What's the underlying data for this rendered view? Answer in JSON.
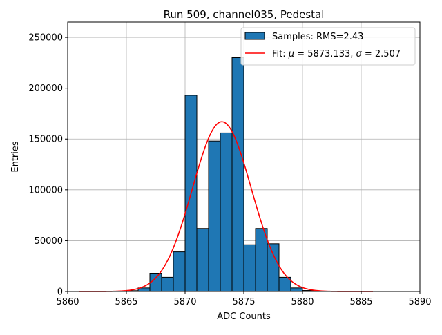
{
  "chart_data": {
    "type": "bar",
    "title": "Run 509, channel035, Pedestal",
    "xlabel": "ADC Counts",
    "ylabel": "Entries",
    "xlim": [
      5860,
      5890
    ],
    "ylim": [
      0,
      265000
    ],
    "xticks": [
      5860,
      5865,
      5870,
      5875,
      5880,
      5885,
      5890
    ],
    "yticks": [
      0,
      50000,
      100000,
      150000,
      200000,
      250000
    ],
    "grid": true,
    "legend_position": "top-right",
    "bin_width": 1,
    "bins": [
      {
        "x": 5865,
        "value": 800
      },
      {
        "x": 5866,
        "value": 3500
      },
      {
        "x": 5867,
        "value": 18000
      },
      {
        "x": 5868,
        "value": 14000
      },
      {
        "x": 5869,
        "value": 39000
      },
      {
        "x": 5870,
        "value": 193000
      },
      {
        "x": 5871,
        "value": 62000
      },
      {
        "x": 5872,
        "value": 148000
      },
      {
        "x": 5873,
        "value": 156000
      },
      {
        "x": 5874,
        "value": 230000
      },
      {
        "x": 5875,
        "value": 46000
      },
      {
        "x": 5876,
        "value": 62000
      },
      {
        "x": 5877,
        "value": 47000
      },
      {
        "x": 5878,
        "value": 14000
      },
      {
        "x": 5879,
        "value": 3500
      },
      {
        "x": 5880,
        "value": 1000
      },
      {
        "x": 5881,
        "value": 200
      }
    ],
    "fit": {
      "mu": 5873.133,
      "sigma": 2.507,
      "amplitude": 167000,
      "x_range": [
        5861,
        5886
      ]
    },
    "series": [
      {
        "name": "Samples: RMS=2.43",
        "type": "histogram",
        "color": "#1f77b4"
      },
      {
        "name": "Fit: μ = 5873.133, σ = 2.507",
        "type": "line",
        "color": "#ff0000"
      }
    ]
  },
  "legend": {
    "samples_label": "Samples: RMS=2.43",
    "fit_prefix": "Fit: ",
    "fit_mu_symbol": "μ",
    "fit_mu_value": " = 5873.133, ",
    "fit_sigma_symbol": "σ",
    "fit_sigma_value": " = 2.507"
  },
  "colors": {
    "bar_fill": "#1f77b4",
    "bar_edge": "#000000",
    "fit_line": "#ff0000",
    "grid": "#b0b0b0"
  }
}
